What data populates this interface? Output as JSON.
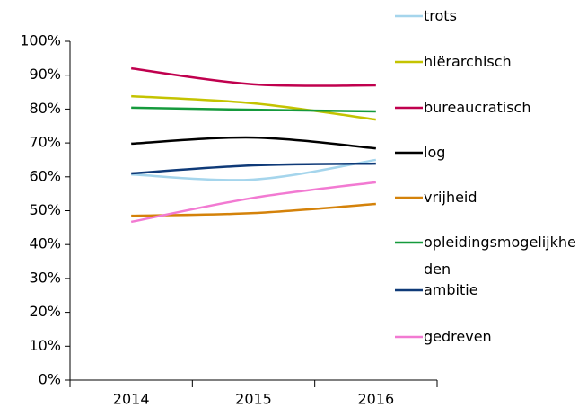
{
  "chart_data": {
    "type": "line",
    "categories": [
      "2014",
      "2015",
      "2016"
    ],
    "ylim": [
      0,
      100
    ],
    "yticks": [
      {
        "value": 0,
        "label": "0%"
      },
      {
        "value": 10,
        "label": "10%"
      },
      {
        "value": 20,
        "label": "20%"
      },
      {
        "value": 30,
        "label": "30%"
      },
      {
        "value": 40,
        "label": "40%"
      },
      {
        "value": 50,
        "label": "50%"
      },
      {
        "value": 60,
        "label": "60%"
      },
      {
        "value": 70,
        "label": "70%"
      },
      {
        "value": 80,
        "label": "80%"
      },
      {
        "value": 90,
        "label": "90%"
      },
      {
        "value": 100,
        "label": "100%"
      }
    ],
    "legend": "right",
    "series": [
      {
        "name": "trots",
        "color": "#a5d5ec",
        "values": [
          60.7,
          59.2,
          65
        ]
      },
      {
        "name": "hiërarchisch",
        "color": "#c4c300",
        "values": [
          83.8,
          81.7,
          76.9
        ]
      },
      {
        "name": "bureaucratisch",
        "color": "#c0004e",
        "values": [
          92,
          87.3,
          87
        ]
      },
      {
        "name": "log",
        "color": "#000000",
        "values": [
          69.8,
          71.6,
          68.4
        ]
      },
      {
        "name": "vrijheid",
        "color": "#d4820a",
        "values": [
          48.5,
          49.3,
          52
        ]
      },
      {
        "name": "opleidingsmogelijkheden",
        "color": "#159a3c",
        "values": [
          80.4,
          79.8,
          79.3
        ]
      },
      {
        "name": "ambitie",
        "color": "#0f3a78",
        "values": [
          61,
          63.4,
          63.9
        ]
      },
      {
        "name": "gedreven",
        "color": "#f27ad2",
        "values": [
          46.7,
          53.8,
          58.4
        ]
      }
    ]
  }
}
